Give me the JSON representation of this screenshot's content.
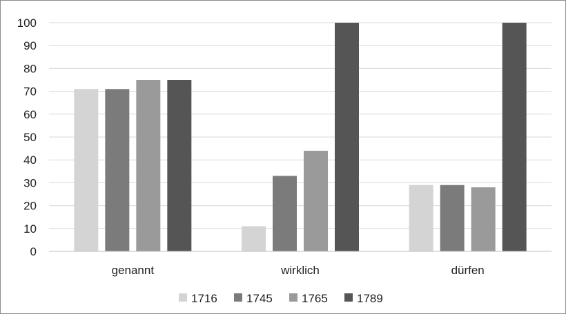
{
  "chart_data": {
    "type": "bar",
    "title": "",
    "xlabel": "",
    "ylabel": "",
    "categories": [
      "genannt",
      "wirklich",
      "dürfen"
    ],
    "series": [
      {
        "name": "1716",
        "color": "#d4d4d4",
        "values": [
          71,
          11,
          29
        ]
      },
      {
        "name": "1745",
        "color": "#7b7b7b",
        "values": [
          71,
          33,
          29
        ]
      },
      {
        "name": "1765",
        "color": "#9a9a9a",
        "values": [
          75,
          44,
          28
        ]
      },
      {
        "name": "1789",
        "color": "#555555",
        "values": [
          75,
          100,
          100
        ]
      }
    ],
    "ylim": [
      0,
      100
    ],
    "yticks": [
      0,
      10,
      20,
      30,
      40,
      50,
      60,
      70,
      80,
      90,
      100
    ],
    "grid": true,
    "legend_position": "bottom"
  }
}
